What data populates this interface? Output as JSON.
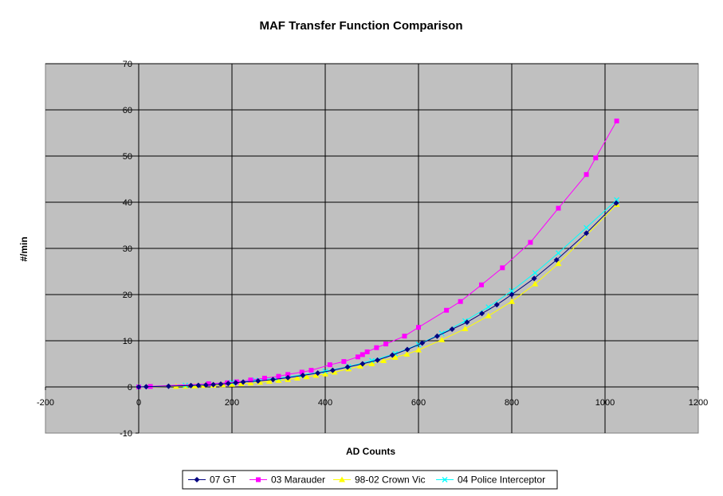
{
  "chart_data": {
    "type": "scatter",
    "title": "MAF Transfer Function Comparison",
    "xlabel": "AD Counts",
    "ylabel": "#/min",
    "xlim": [
      -200,
      1200
    ],
    "ylim": [
      -10,
      70
    ],
    "xticks": [
      -200,
      0,
      200,
      400,
      600,
      800,
      1000,
      1200
    ],
    "yticks": [
      -10,
      0,
      10,
      20,
      30,
      40,
      50,
      60,
      70
    ],
    "grid": true,
    "legend_position": "bottom",
    "plot_background": "#c0c0c0",
    "series": [
      {
        "name": "07 GT",
        "color": "#000080",
        "marker": "diamond",
        "x": [
          0,
          16,
          64,
          112,
          128,
          144,
          160,
          176,
          192,
          208,
          224,
          256,
          288,
          320,
          352,
          384,
          416,
          448,
          480,
          512,
          544,
          576,
          608,
          640,
          672,
          704,
          736,
          768,
          800,
          848,
          896,
          960,
          1024
        ],
        "y": [
          0,
          0.05,
          0.15,
          0.3,
          0.35,
          0.4,
          0.5,
          0.6,
          0.75,
          0.9,
          1.05,
          1.3,
          1.6,
          2.0,
          2.5,
          3.0,
          3.6,
          4.3,
          5.0,
          5.8,
          6.9,
          8.1,
          9.5,
          11.0,
          12.5,
          14.0,
          15.9,
          17.8,
          20.0,
          23.5,
          27.5,
          33.3,
          39.8
        ]
      },
      {
        "name": "03 Marauder",
        "color": "#ff00ff",
        "marker": "square",
        "x": [
          0,
          25,
          150,
          190,
          210,
          240,
          270,
          300,
          320,
          350,
          370,
          410,
          440,
          470,
          480,
          490,
          510,
          530,
          570,
          600,
          660,
          690,
          735,
          780,
          840,
          900,
          960,
          980,
          1025
        ],
        "y": [
          0,
          0.1,
          0.7,
          0.9,
          1.1,
          1.5,
          1.9,
          2.3,
          2.7,
          3.2,
          3.6,
          4.8,
          5.5,
          6.5,
          7.0,
          7.6,
          8.5,
          9.3,
          11.0,
          12.9,
          16.6,
          18.5,
          22.1,
          25.8,
          31.3,
          38.7,
          46.0,
          49.6,
          57.6
        ]
      },
      {
        "name": "98-02 Crown Vic",
        "color": "#ffff00",
        "marker": "triangle",
        "x": [
          0,
          80,
          100,
          120,
          140,
          160,
          180,
          200,
          220,
          240,
          260,
          280,
          300,
          320,
          340,
          360,
          380,
          400,
          420,
          450,
          475,
          500,
          525,
          550,
          575,
          600,
          650,
          700,
          750,
          800,
          850,
          900,
          1025
        ],
        "y": [
          0,
          0.1,
          0.15,
          0.2,
          0.3,
          0.35,
          0.45,
          0.55,
          0.7,
          0.85,
          1.0,
          1.2,
          1.4,
          1.6,
          1.9,
          2.2,
          2.5,
          2.8,
          3.2,
          3.9,
          4.5,
          5.0,
          5.7,
          6.4,
          7.1,
          8.0,
          10.2,
          12.6,
          15.4,
          18.5,
          22.3,
          26.7,
          39.5
        ]
      },
      {
        "name": "04 Police Interceptor",
        "color": "#00ffff",
        "marker": "x",
        "x": [
          0,
          100,
          150,
          200,
          250,
          300,
          350,
          400,
          450,
          500,
          550,
          600,
          650,
          700,
          750,
          800,
          850,
          900,
          960,
          1025
        ],
        "y": [
          0,
          0.35,
          0.65,
          1.0,
          1.45,
          1.95,
          2.6,
          3.4,
          4.4,
          5.7,
          7.2,
          9.2,
          11.6,
          14.3,
          17.3,
          20.8,
          24.7,
          29.0,
          34.5,
          40.5
        ]
      }
    ]
  }
}
